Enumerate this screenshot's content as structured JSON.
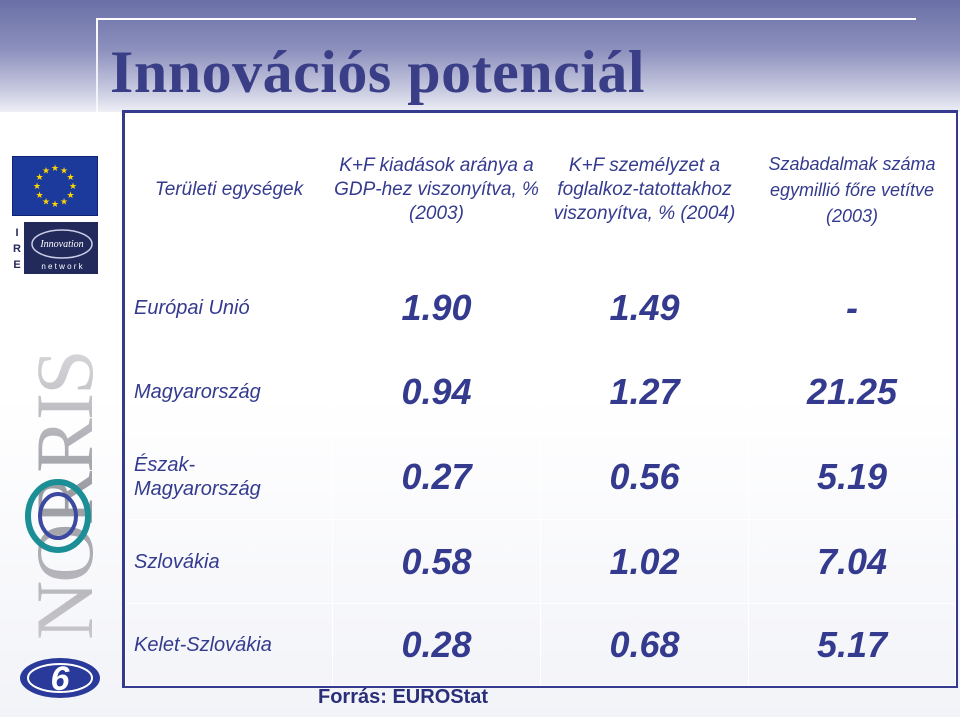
{
  "title": "Innovációs potenciál",
  "logos": {
    "eu_flag": "eu-flag-icon",
    "ire_letters": [
      "I",
      "R",
      "E"
    ],
    "ire_script": "Innovation",
    "ire_network": "n e t w o r k",
    "norris_text": "NORRIS",
    "six_logo": "6"
  },
  "table": {
    "headers": [
      "Területi egységek",
      "K+F kiadások aránya a GDP-hez viszonyítva, % (2003)",
      "K+F személyzet a foglalkoz-tatottakhoz viszonyítva, % (2004)",
      "Szabadalmak száma egymillió főre vetítve (2003)"
    ],
    "rows": [
      {
        "label": "Európai Unió",
        "values": [
          "1.90",
          "1.49",
          "-"
        ]
      },
      {
        "label": "Magyarország",
        "values": [
          "0.94",
          "1.27",
          "21.25"
        ]
      },
      {
        "label": "Észak-Magyarország",
        "values": [
          "0.27",
          "0.56",
          "5.19"
        ]
      },
      {
        "label": "Szlovákia",
        "values": [
          "0.58",
          "1.02",
          "7.04"
        ]
      },
      {
        "label": "Kelet-Szlovákia",
        "values": [
          "0.28",
          "0.68",
          "5.17"
        ]
      }
    ]
  },
  "source": "Forrás: EUROStat",
  "colors": {
    "accent": "#343b8e",
    "title": "#3a3e87",
    "band_top": "#6a6fa7"
  }
}
